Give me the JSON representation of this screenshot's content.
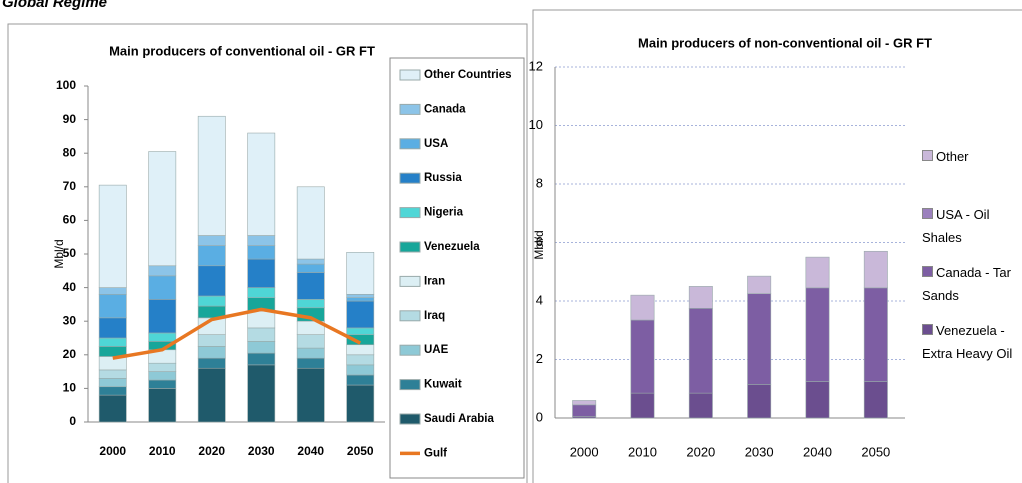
{
  "page_title": "Global Regime",
  "chart_data": [
    {
      "type": "bar",
      "stacked": true,
      "title": "Main producers of conventional oil - GR FT",
      "y_label": "Mbl/d",
      "categories": [
        "2000",
        "2010",
        "2020",
        "2030",
        "2040",
        "2050"
      ],
      "ylim": [
        0,
        100
      ],
      "yticks": [
        0,
        10,
        20,
        30,
        40,
        50,
        60,
        70,
        80,
        90,
        100
      ],
      "grid": false,
      "series": [
        {
          "name": "Saudi Arabia",
          "color": "#1f5a6b",
          "values": [
            8,
            10,
            16,
            17,
            16,
            11
          ]
        },
        {
          "name": "Kuwait",
          "color": "#2e8097",
          "values": [
            2.5,
            2.5,
            3,
            3.5,
            3,
            3
          ]
        },
        {
          "name": "UAE",
          "color": "#8ec9d6",
          "values": [
            2.5,
            2.5,
            3.5,
            3.5,
            3,
            3
          ]
        },
        {
          "name": "Iraq",
          "color": "#b4dbe3",
          "values": [
            2.5,
            2.5,
            3.5,
            4,
            4,
            3
          ]
        },
        {
          "name": "Iran",
          "color": "#dceff4",
          "values": [
            4,
            4,
            5,
            5,
            4,
            3
          ]
        },
        {
          "name": "Venezuela",
          "color": "#17a69a",
          "values": [
            3,
            2.5,
            3.5,
            4,
            4,
            3
          ]
        },
        {
          "name": "Nigeria",
          "color": "#4fd6d6",
          "values": [
            2.5,
            2.5,
            3,
            3,
            2.5,
            2
          ]
        },
        {
          "name": "Russia",
          "color": "#2580c8",
          "values": [
            6,
            10,
            9,
            8.5,
            8,
            8
          ]
        },
        {
          "name": "USA",
          "color": "#5aaee3",
          "values": [
            7,
            7,
            6,
            4,
            2.5,
            1
          ]
        },
        {
          "name": "Canada",
          "color": "#8cc4e8",
          "values": [
            2,
            3,
            3,
            3,
            1.5,
            1
          ]
        },
        {
          "name": "Other Countries",
          "color": "#dff0f8",
          "values": [
            30.5,
            34,
            35.5,
            30.5,
            21.5,
            12.5
          ]
        },
        {
          "name": "Gulf",
          "type": "line",
          "color": "#e87722",
          "values": [
            19,
            21.5,
            30.5,
            33.5,
            31,
            23.5
          ]
        }
      ]
    },
    {
      "type": "bar",
      "stacked": true,
      "title": "Main producers  of non-conventional  oil - GR FT",
      "y_label": "Mbl/d",
      "categories": [
        "2000",
        "2010",
        "2020",
        "2030",
        "2040",
        "2050"
      ],
      "ylim": [
        0,
        12
      ],
      "yticks": [
        0,
        2,
        4,
        6,
        8,
        10,
        12
      ],
      "grid": true,
      "series": [
        {
          "name": "Venezuela - Extra Heavy Oil",
          "color": "#6b4e8f",
          "values": [
            0.05,
            0.85,
            0.85,
            1.15,
            1.25,
            1.25
          ]
        },
        {
          "name": "Canada - Tar Sands",
          "color": "#7d5ea3",
          "values": [
            0.4,
            2.5,
            2.9,
            3.1,
            3.2,
            3.2
          ]
        },
        {
          "name": "USA - Oil Shales",
          "color": "#9b80bd",
          "values": [
            0,
            0,
            0,
            0,
            0,
            0
          ]
        },
        {
          "name": "Other",
          "color": "#c9b8d9",
          "values": [
            0.15,
            0.85,
            0.75,
            0.6,
            1.05,
            1.25
          ]
        }
      ]
    }
  ]
}
